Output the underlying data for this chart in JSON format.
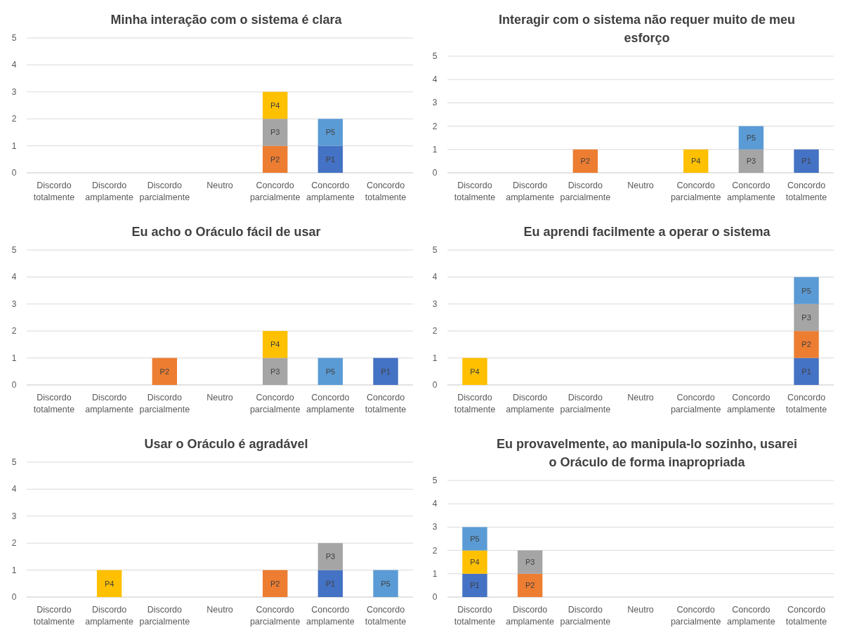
{
  "chart_data": [
    {
      "type": "bar",
      "stacked": true,
      "title": "Minha interação com o sistema é clara",
      "categories": [
        "Discordo totalmente",
        "Discordo amplamente",
        "Discordo parcialmente",
        "Neutro",
        "Concordo parcialmente",
        "Concordo amplamente",
        "Concordo totalmente"
      ],
      "ylim": [
        0,
        5
      ],
      "yticks": [
        0,
        1,
        2,
        3,
        4,
        5
      ],
      "grid": "y",
      "series": [
        {
          "name": "P1",
          "color": "#4472c4",
          "values": [
            null,
            null,
            null,
            null,
            null,
            1,
            null
          ]
        },
        {
          "name": "P2",
          "color": "#ed7d31",
          "values": [
            null,
            null,
            null,
            null,
            1,
            null,
            null
          ]
        },
        {
          "name": "P3",
          "color": "#a5a5a5",
          "values": [
            null,
            null,
            null,
            null,
            1,
            null,
            null
          ]
        },
        {
          "name": "P4",
          "color": "#ffc000",
          "values": [
            null,
            null,
            null,
            null,
            1,
            null,
            null
          ]
        },
        {
          "name": "P5",
          "color": "#5b9bd5",
          "values": [
            null,
            null,
            null,
            null,
            null,
            1,
            null
          ]
        }
      ]
    },
    {
      "type": "bar",
      "stacked": true,
      "title": "Interagir com o sistema não requer muito de meu esforço",
      "categories": [
        "Discordo totalmente",
        "Discordo amplamente",
        "Discordo parcialmente",
        "Neutro",
        "Concordo parcialmente",
        "Concordo amplamente",
        "Concordo totalmente"
      ],
      "ylim": [
        0,
        5
      ],
      "yticks": [
        0,
        1,
        2,
        3,
        4,
        5
      ],
      "grid": "y",
      "series": [
        {
          "name": "P1",
          "color": "#4472c4",
          "values": [
            null,
            null,
            null,
            null,
            null,
            null,
            1
          ]
        },
        {
          "name": "P2",
          "color": "#ed7d31",
          "values": [
            null,
            null,
            1,
            null,
            null,
            null,
            null
          ]
        },
        {
          "name": "P3",
          "color": "#a5a5a5",
          "values": [
            null,
            null,
            null,
            null,
            null,
            1,
            null
          ]
        },
        {
          "name": "P4",
          "color": "#ffc000",
          "values": [
            null,
            null,
            null,
            null,
            1,
            null,
            null
          ]
        },
        {
          "name": "P5",
          "color": "#5b9bd5",
          "values": [
            null,
            null,
            null,
            null,
            null,
            1,
            null
          ]
        }
      ]
    },
    {
      "type": "bar",
      "stacked": true,
      "title": "Eu acho o Oráculo fácil de usar",
      "categories": [
        "Discordo totalmente",
        "Discordo amplamente",
        "Discordo parcialmente",
        "Neutro",
        "Concordo parcialmente",
        "Concordo amplamente",
        "Concordo totalmente"
      ],
      "ylim": [
        0,
        5
      ],
      "yticks": [
        0,
        1,
        2,
        3,
        4,
        5
      ],
      "grid": "y",
      "series": [
        {
          "name": "P1",
          "color": "#4472c4",
          "values": [
            null,
            null,
            null,
            null,
            null,
            null,
            1
          ]
        },
        {
          "name": "P2",
          "color": "#ed7d31",
          "values": [
            null,
            null,
            1,
            null,
            null,
            null,
            null
          ]
        },
        {
          "name": "P3",
          "color": "#a5a5a5",
          "values": [
            null,
            null,
            null,
            null,
            1,
            null,
            null
          ]
        },
        {
          "name": "P4",
          "color": "#ffc000",
          "values": [
            null,
            null,
            null,
            null,
            1,
            null,
            null
          ]
        },
        {
          "name": "P5",
          "color": "#5b9bd5",
          "values": [
            null,
            null,
            null,
            null,
            null,
            1,
            null
          ]
        }
      ]
    },
    {
      "type": "bar",
      "stacked": true,
      "title": "Eu aprendi facilmente a operar o sistema",
      "categories": [
        "Discordo totalmente",
        "Discordo amplamente",
        "Discordo parcialmente",
        "Neutro",
        "Concordo parcialmente",
        "Concordo amplamente",
        "Concordo totalmente"
      ],
      "ylim": [
        0,
        5
      ],
      "yticks": [
        0,
        1,
        2,
        3,
        4,
        5
      ],
      "grid": "y",
      "series": [
        {
          "name": "P1",
          "color": "#4472c4",
          "values": [
            null,
            null,
            null,
            null,
            null,
            null,
            1
          ]
        },
        {
          "name": "P2",
          "color": "#ed7d31",
          "values": [
            null,
            null,
            null,
            null,
            null,
            null,
            1
          ]
        },
        {
          "name": "P3",
          "color": "#a5a5a5",
          "values": [
            null,
            null,
            null,
            null,
            null,
            null,
            1
          ]
        },
        {
          "name": "P4",
          "color": "#ffc000",
          "values": [
            1,
            null,
            null,
            null,
            null,
            null,
            null
          ]
        },
        {
          "name": "P5",
          "color": "#5b9bd5",
          "values": [
            null,
            null,
            null,
            null,
            null,
            null,
            1
          ]
        }
      ]
    },
    {
      "type": "bar",
      "stacked": true,
      "title": "Usar o Oráculo é agradável",
      "categories": [
        "Discordo totalmente",
        "Discordo amplamente",
        "Discordo parcialmente",
        "Neutro",
        "Concordo parcialmente",
        "Concordo amplamente",
        "Concordo totalmente"
      ],
      "ylim": [
        0,
        5
      ],
      "yticks": [
        0,
        1,
        2,
        3,
        4,
        5
      ],
      "grid": "y",
      "series": [
        {
          "name": "P1",
          "color": "#4472c4",
          "values": [
            null,
            null,
            null,
            null,
            null,
            1,
            null
          ]
        },
        {
          "name": "P2",
          "color": "#ed7d31",
          "values": [
            null,
            null,
            null,
            null,
            1,
            null,
            null
          ]
        },
        {
          "name": "P3",
          "color": "#a5a5a5",
          "values": [
            null,
            null,
            null,
            null,
            null,
            1,
            null
          ]
        },
        {
          "name": "P4",
          "color": "#ffc000",
          "values": [
            null,
            1,
            null,
            null,
            null,
            null,
            null
          ]
        },
        {
          "name": "P5",
          "color": "#5b9bd5",
          "values": [
            null,
            null,
            null,
            null,
            null,
            null,
            1
          ]
        }
      ]
    },
    {
      "type": "bar",
      "stacked": true,
      "title": "Eu provavelmente, ao manipula-lo sozinho, usarei o Oráculo de forma inapropriada",
      "categories": [
        "Discordo totalmente",
        "Discordo amplamente",
        "Discordo parcialmente",
        "Neutro",
        "Concordo parcialmente",
        "Concordo amplamente",
        "Concordo totalmente"
      ],
      "ylim": [
        0,
        5
      ],
      "yticks": [
        0,
        1,
        2,
        3,
        4,
        5
      ],
      "grid": "y",
      "series": [
        {
          "name": "P1",
          "color": "#4472c4",
          "values": [
            1,
            null,
            null,
            null,
            null,
            null,
            null
          ]
        },
        {
          "name": "P2",
          "color": "#ed7d31",
          "values": [
            null,
            1,
            null,
            null,
            null,
            null,
            null
          ]
        },
        {
          "name": "P3",
          "color": "#a5a5a5",
          "values": [
            null,
            1,
            null,
            null,
            null,
            null,
            null
          ]
        },
        {
          "name": "P4",
          "color": "#ffc000",
          "values": [
            1,
            null,
            null,
            null,
            null,
            null,
            null
          ]
        },
        {
          "name": "P5",
          "color": "#5b9bd5",
          "values": [
            1,
            null,
            null,
            null,
            null,
            null,
            null
          ]
        }
      ]
    }
  ]
}
